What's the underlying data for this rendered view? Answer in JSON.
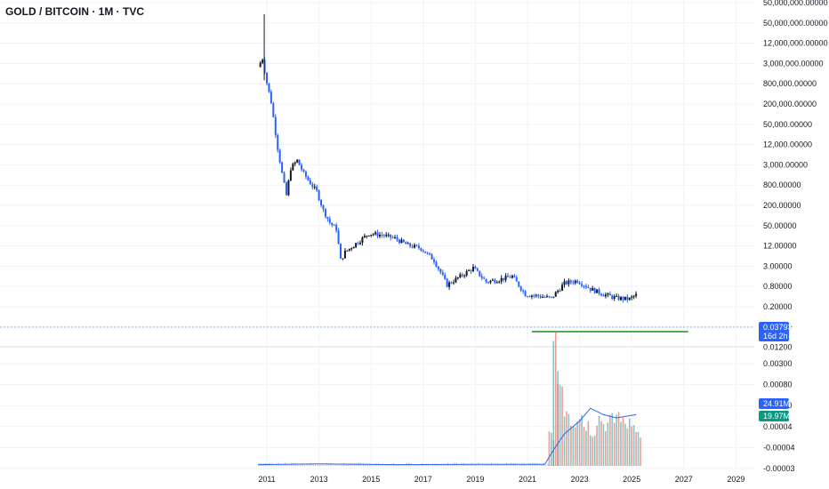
{
  "header": {
    "title": "GOLD / BITCOIN · 1M · TVC"
  },
  "chart_data": {
    "type": "candlestick",
    "title": "GOLD / BITCOIN · 1M · TVC",
    "y_scale": "log",
    "price_ticks": [
      "50,000,000.00000",
      "50,000,000.00000",
      "12,000,000.00000",
      "3,000,000.00000",
      "800,000.00000",
      "200,000.00000",
      "50,000.00000",
      "12,000.00000",
      "3,000.00000",
      "800.00000",
      "200.00000",
      "50.00000",
      "12.00000",
      "3.00000",
      "0.80000",
      "0.20000",
      "0.05000",
      "0.01200"
    ],
    "volume_ticks": [
      "0.00300",
      "0.00080",
      "0.00020",
      "0.00004",
      "-0.00004",
      "-0.00003"
    ],
    "x_ticks": [
      "2011",
      "2013",
      "2015",
      "2017",
      "2019",
      "2021",
      "2023",
      "2025",
      "2027",
      "2029"
    ],
    "current_price": "0.03793",
    "countdown": "16d 2h",
    "volume_badge_1": "24.91M",
    "volume_badge_2": "19.97M",
    "price_series": {
      "points": [
        [
          "2010-09",
          800000
        ],
        [
          "2010-11",
          1500000
        ],
        [
          "2011-01",
          250000
        ],
        [
          "2011-03",
          60000
        ],
        [
          "2011-06",
          2000
        ],
        [
          "2011-08",
          300
        ],
        [
          "2011-10",
          60
        ],
        [
          "2011-12",
          450
        ],
        [
          "2012-03",
          800
        ],
        [
          "2012-06",
          300
        ],
        [
          "2012-09",
          150
        ],
        [
          "2012-12",
          80
        ],
        [
          "2013-03",
          20
        ],
        [
          "2013-06",
          8
        ],
        [
          "2013-09",
          5
        ],
        [
          "2013-11",
          0.5
        ],
        [
          "2014-01",
          0.9
        ],
        [
          "2014-06",
          1.7
        ],
        [
          "2014-12",
          3.6
        ],
        [
          "2015-06",
          3.2
        ],
        [
          "2015-12",
          2.5
        ],
        [
          "2016-06",
          1.5
        ],
        [
          "2016-12",
          1.2
        ],
        [
          "2017-06",
          0.5
        ],
        [
          "2017-12",
          0.08
        ],
        [
          "2018-06",
          0.15
        ],
        [
          "2018-12",
          0.28
        ],
        [
          "2019-06",
          0.1
        ],
        [
          "2019-12",
          0.12
        ],
        [
          "2020-06",
          0.15
        ],
        [
          "2020-12",
          0.04
        ],
        [
          "2021-06",
          0.035
        ],
        [
          "2021-12",
          0.03
        ],
        [
          "2022-06",
          0.09
        ],
        [
          "2022-12",
          0.11
        ],
        [
          "2023-06",
          0.06
        ],
        [
          "2023-12",
          0.04
        ],
        [
          "2024-06",
          0.03
        ],
        [
          "2024-12",
          0.028
        ],
        [
          "2025-03",
          0.038
        ]
      ]
    },
    "support_line": {
      "value": 0.028,
      "from": "2021-03",
      "to": "2027-03"
    },
    "volume_series": {
      "bars": [
        [
          "2021-11",
          1.0
        ],
        [
          "2022-01",
          3.5
        ],
        [
          "2022-03",
          2.6
        ],
        [
          "2022-06",
          1.8
        ],
        [
          "2022-09",
          1.4
        ],
        [
          "2022-12",
          1.6
        ],
        [
          "2023-03",
          1.3
        ],
        [
          "2023-06",
          1.1
        ],
        [
          "2023-09",
          1.5
        ],
        [
          "2023-12",
          1.3
        ],
        [
          "2024-03",
          1.4
        ],
        [
          "2024-06",
          1.6
        ],
        [
          "2024-09",
          1.3
        ],
        [
          "2024-12",
          1.5
        ],
        [
          "2025-03",
          1.0
        ]
      ],
      "ma": [
        [
          "2010-09",
          0.04
        ],
        [
          "2013-01",
          0.06
        ],
        [
          "2016-01",
          0.04
        ],
        [
          "2019-01",
          0.05
        ],
        [
          "2021-09",
          0.05
        ],
        [
          "2022-01",
          0.5
        ],
        [
          "2022-06",
          1.0
        ],
        [
          "2023-01",
          1.4
        ],
        [
          "2023-06",
          1.8
        ],
        [
          "2023-12",
          1.6
        ],
        [
          "2024-06",
          1.5
        ],
        [
          "2025-03",
          1.6
        ]
      ]
    },
    "colors": {
      "up": "#2962ff",
      "down": "#131722",
      "support": "#4caf50",
      "volume_up": "#26a69a",
      "volume_down": "#ef5350",
      "ma": "#2962ff",
      "price_badge": "#2962ff",
      "volume_badge_2": "#089981"
    }
  }
}
